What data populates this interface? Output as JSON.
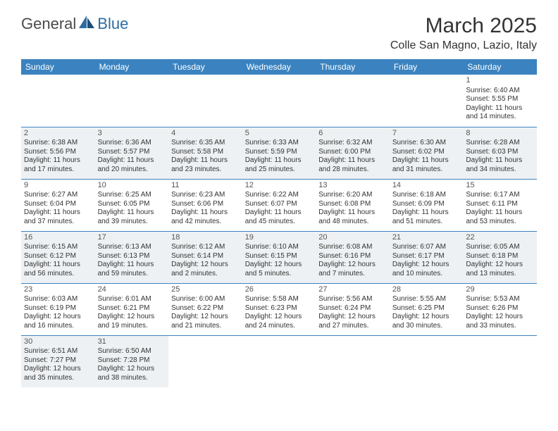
{
  "logo": {
    "text1": "General",
    "text2": "Blue"
  },
  "title": "March 2025",
  "location": "Colle San Magno, Lazio, Italy",
  "colors": {
    "header_bg": "#3b83c0",
    "header_text": "#ffffff",
    "border": "#3b83c0",
    "shade": "#eef1f3",
    "text": "#333333",
    "logo_gray": "#4a4a4a",
    "logo_blue": "#2d6ca2"
  },
  "daynames": [
    "Sunday",
    "Monday",
    "Tuesday",
    "Wednesday",
    "Thursday",
    "Friday",
    "Saturday"
  ],
  "weeks": [
    [
      null,
      null,
      null,
      null,
      null,
      null,
      {
        "n": "1",
        "sr": "6:40 AM",
        "ss": "5:55 PM",
        "dl": "11 hours and 14 minutes."
      }
    ],
    [
      {
        "n": "2",
        "sr": "6:38 AM",
        "ss": "5:56 PM",
        "dl": "11 hours and 17 minutes."
      },
      {
        "n": "3",
        "sr": "6:36 AM",
        "ss": "5:57 PM",
        "dl": "11 hours and 20 minutes."
      },
      {
        "n": "4",
        "sr": "6:35 AM",
        "ss": "5:58 PM",
        "dl": "11 hours and 23 minutes."
      },
      {
        "n": "5",
        "sr": "6:33 AM",
        "ss": "5:59 PM",
        "dl": "11 hours and 25 minutes."
      },
      {
        "n": "6",
        "sr": "6:32 AM",
        "ss": "6:00 PM",
        "dl": "11 hours and 28 minutes."
      },
      {
        "n": "7",
        "sr": "6:30 AM",
        "ss": "6:02 PM",
        "dl": "11 hours and 31 minutes."
      },
      {
        "n": "8",
        "sr": "6:28 AM",
        "ss": "6:03 PM",
        "dl": "11 hours and 34 minutes."
      }
    ],
    [
      {
        "n": "9",
        "sr": "6:27 AM",
        "ss": "6:04 PM",
        "dl": "11 hours and 37 minutes."
      },
      {
        "n": "10",
        "sr": "6:25 AM",
        "ss": "6:05 PM",
        "dl": "11 hours and 39 minutes."
      },
      {
        "n": "11",
        "sr": "6:23 AM",
        "ss": "6:06 PM",
        "dl": "11 hours and 42 minutes."
      },
      {
        "n": "12",
        "sr": "6:22 AM",
        "ss": "6:07 PM",
        "dl": "11 hours and 45 minutes."
      },
      {
        "n": "13",
        "sr": "6:20 AM",
        "ss": "6:08 PM",
        "dl": "11 hours and 48 minutes."
      },
      {
        "n": "14",
        "sr": "6:18 AM",
        "ss": "6:09 PM",
        "dl": "11 hours and 51 minutes."
      },
      {
        "n": "15",
        "sr": "6:17 AM",
        "ss": "6:11 PM",
        "dl": "11 hours and 53 minutes."
      }
    ],
    [
      {
        "n": "16",
        "sr": "6:15 AM",
        "ss": "6:12 PM",
        "dl": "11 hours and 56 minutes."
      },
      {
        "n": "17",
        "sr": "6:13 AM",
        "ss": "6:13 PM",
        "dl": "11 hours and 59 minutes."
      },
      {
        "n": "18",
        "sr": "6:12 AM",
        "ss": "6:14 PM",
        "dl": "12 hours and 2 minutes."
      },
      {
        "n": "19",
        "sr": "6:10 AM",
        "ss": "6:15 PM",
        "dl": "12 hours and 5 minutes."
      },
      {
        "n": "20",
        "sr": "6:08 AM",
        "ss": "6:16 PM",
        "dl": "12 hours and 7 minutes."
      },
      {
        "n": "21",
        "sr": "6:07 AM",
        "ss": "6:17 PM",
        "dl": "12 hours and 10 minutes."
      },
      {
        "n": "22",
        "sr": "6:05 AM",
        "ss": "6:18 PM",
        "dl": "12 hours and 13 minutes."
      }
    ],
    [
      {
        "n": "23",
        "sr": "6:03 AM",
        "ss": "6:19 PM",
        "dl": "12 hours and 16 minutes."
      },
      {
        "n": "24",
        "sr": "6:01 AM",
        "ss": "6:21 PM",
        "dl": "12 hours and 19 minutes."
      },
      {
        "n": "25",
        "sr": "6:00 AM",
        "ss": "6:22 PM",
        "dl": "12 hours and 21 minutes."
      },
      {
        "n": "26",
        "sr": "5:58 AM",
        "ss": "6:23 PM",
        "dl": "12 hours and 24 minutes."
      },
      {
        "n": "27",
        "sr": "5:56 AM",
        "ss": "6:24 PM",
        "dl": "12 hours and 27 minutes."
      },
      {
        "n": "28",
        "sr": "5:55 AM",
        "ss": "6:25 PM",
        "dl": "12 hours and 30 minutes."
      },
      {
        "n": "29",
        "sr": "5:53 AM",
        "ss": "6:26 PM",
        "dl": "12 hours and 33 minutes."
      }
    ],
    [
      {
        "n": "30",
        "sr": "6:51 AM",
        "ss": "7:27 PM",
        "dl": "12 hours and 35 minutes."
      },
      {
        "n": "31",
        "sr": "6:50 AM",
        "ss": "7:28 PM",
        "dl": "12 hours and 38 minutes."
      },
      null,
      null,
      null,
      null,
      null
    ]
  ],
  "labels": {
    "sunrise": "Sunrise:",
    "sunset": "Sunset:",
    "daylight": "Daylight:"
  }
}
